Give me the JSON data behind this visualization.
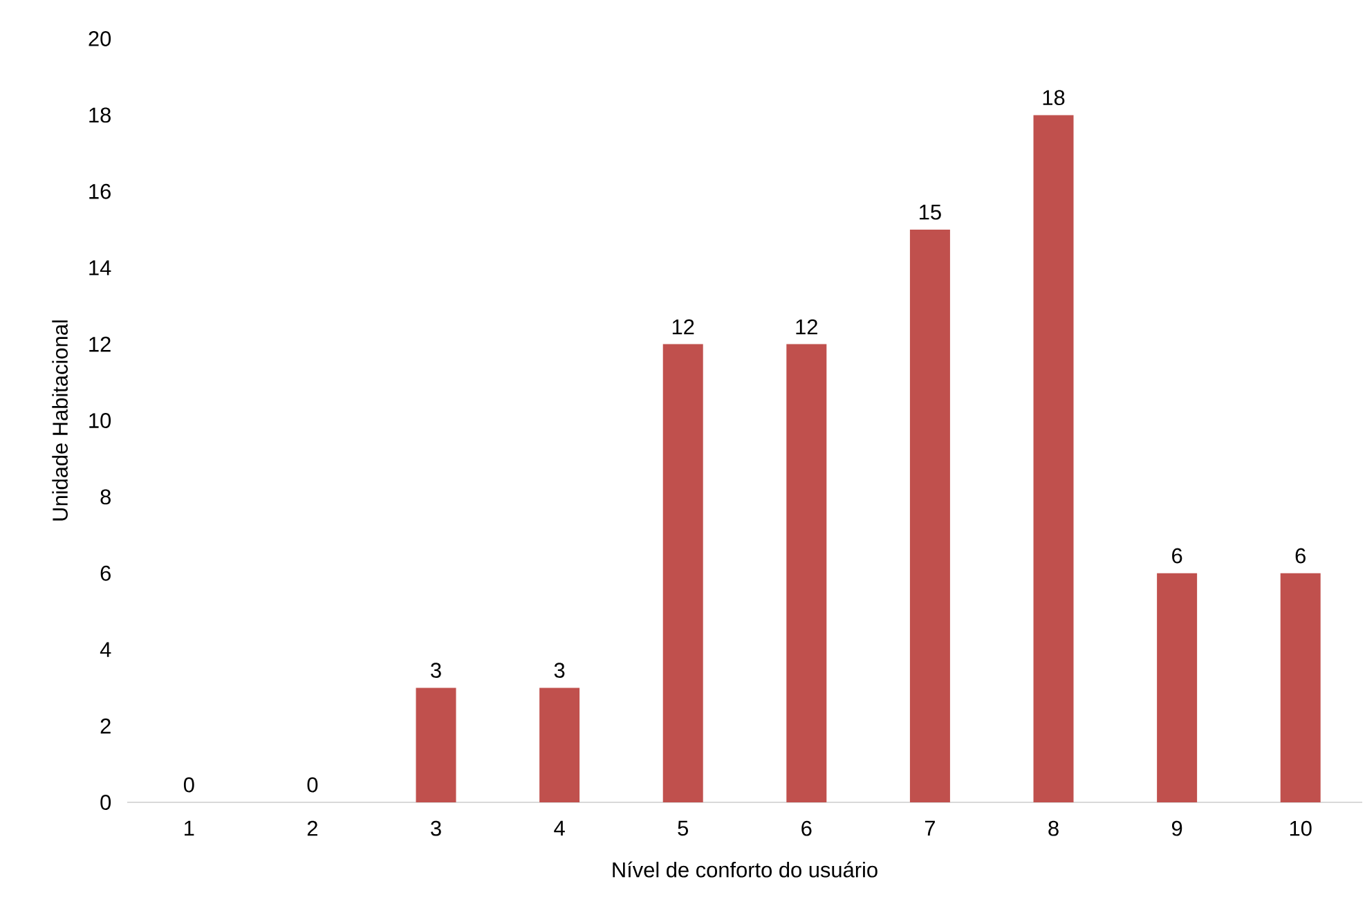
{
  "chart_data": {
    "type": "bar",
    "xlabel": "Nível de conforto do usuário",
    "ylabel": "Unidade Habitacional",
    "categories": [
      "1",
      "2",
      "3",
      "4",
      "5",
      "6",
      "7",
      "8",
      "9",
      "10"
    ],
    "values": [
      0,
      0,
      3,
      3,
      12,
      12,
      15,
      18,
      6,
      6
    ],
    "color": "#c0504d",
    "ylim": [
      0,
      20
    ],
    "yticks": [
      0,
      2,
      4,
      6,
      8,
      10,
      12,
      14,
      16,
      18,
      20
    ],
    "data_labels": true,
    "grid": false
  }
}
